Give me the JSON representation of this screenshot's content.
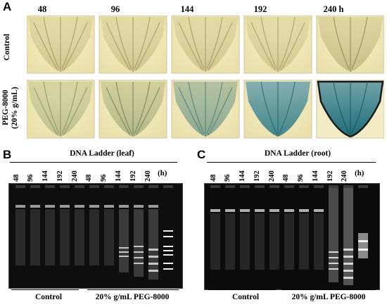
{
  "panels": {
    "a": {
      "letter": "A",
      "time_points": [
        "48",
        "96",
        "144",
        "192",
        "240 h"
      ],
      "rows": [
        {
          "label": "Control"
        },
        {
          "label": "PEG-8000\n(20% g/mL)"
        }
      ]
    },
    "b": {
      "letter": "B",
      "title": "DNA Ladder (leaf)",
      "lanes": [
        "48",
        "96",
        "144",
        "192",
        "240",
        "48",
        "96",
        "144",
        "192",
        "240"
      ],
      "unit": "(h)",
      "groups": [
        "Control",
        "20% g/mL  PEG-8000"
      ]
    },
    "c": {
      "letter": "C",
      "title": "DNA Ladder (root)",
      "lanes": [
        "48",
        "96",
        "144",
        "192",
        "240",
        "48",
        "96",
        "144",
        "192",
        "240"
      ],
      "unit": "(h)",
      "groups": [
        "Control",
        "20% g/mL  PEG-8000"
      ]
    }
  }
}
